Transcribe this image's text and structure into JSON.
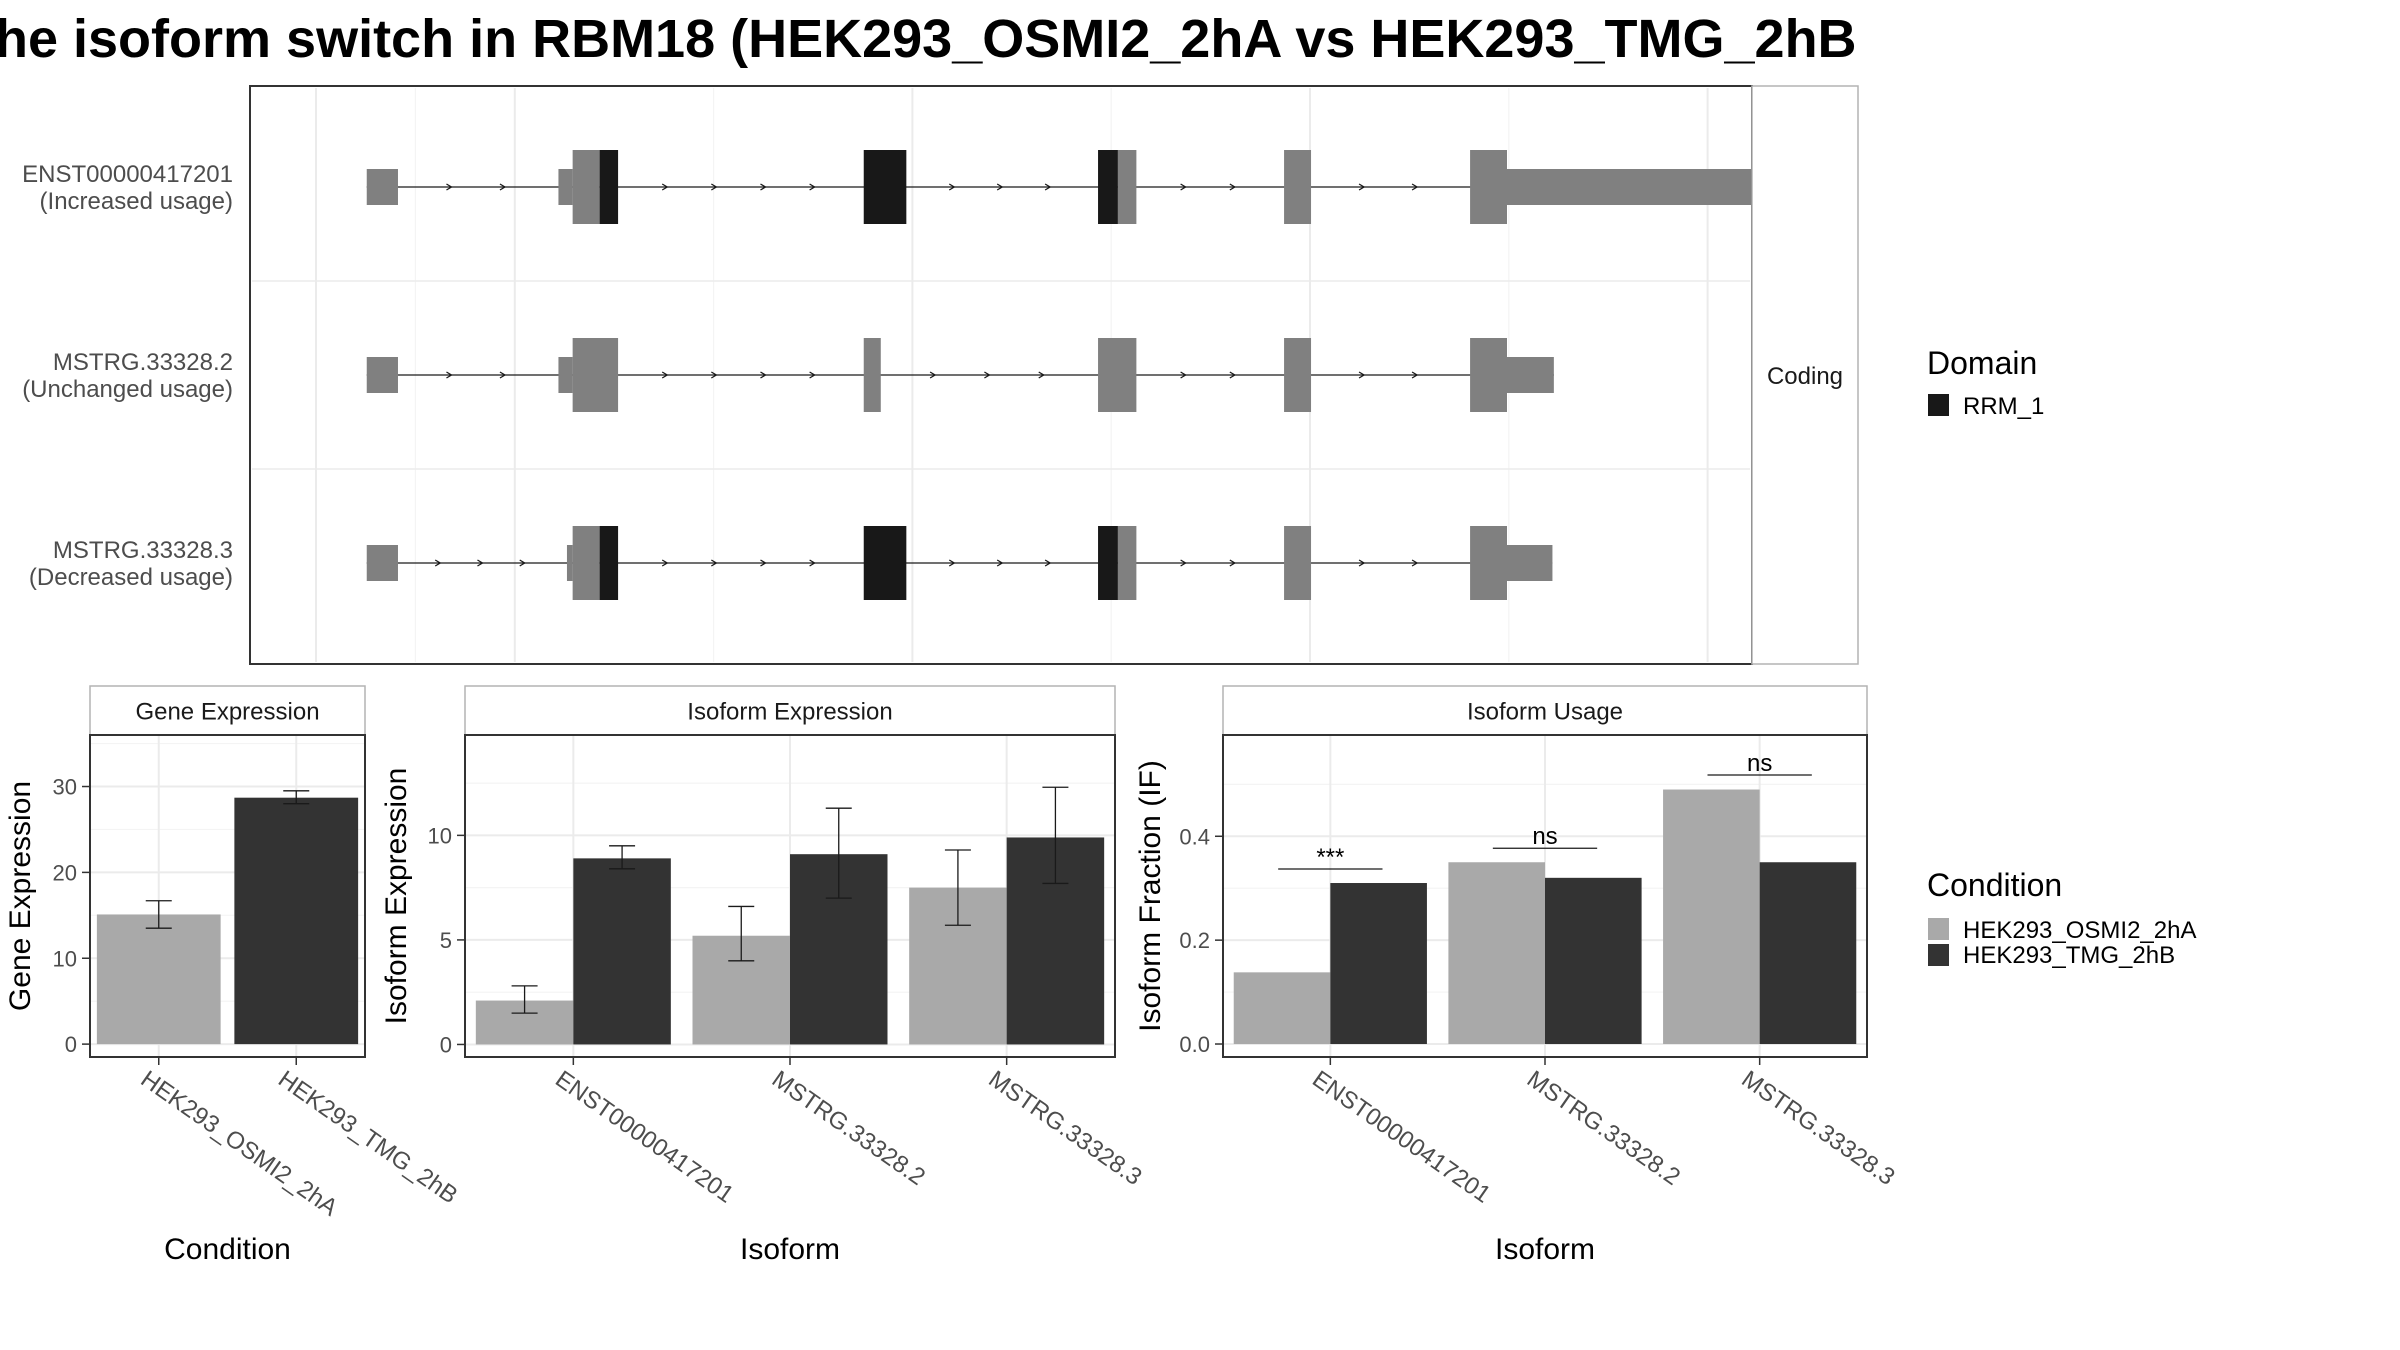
{
  "title": "he isoform switch in RBM18 (HEK293_OSMI2_2hA vs HEK293_TMG_2hB",
  "colors": {
    "condA": "#a9a9a9",
    "condB": "#333333",
    "utr": "#808080",
    "domain": "#181818",
    "grid": "#ebebeb",
    "border": "#333333",
    "stripBorder": "#b3b3b3"
  },
  "chart_data": [
    {
      "type": "gene-structure",
      "facet_label": "Coding",
      "x_range": [
        0,
        1
      ],
      "transcripts": [
        {
          "id": "ENST00000417201",
          "status": "(Increased usage)",
          "exons": [
            {
              "start": 0.047,
              "end": 0.069,
              "kind": "utr"
            },
            {
              "start": 0.182,
              "end": 0.192,
              "kind": "utr-mid"
            },
            {
              "start": 0.192,
              "end": 0.211,
              "kind": "cds"
            },
            {
              "start": 0.211,
              "end": 0.224,
              "kind": "domain"
            },
            {
              "start": 0.397,
              "end": 0.427,
              "kind": "domain"
            },
            {
              "start": 0.562,
              "end": 0.576,
              "kind": "domain"
            },
            {
              "start": 0.576,
              "end": 0.589,
              "kind": "cds"
            },
            {
              "start": 0.693,
              "end": 0.712,
              "kind": "cds"
            },
            {
              "start": 0.824,
              "end": 0.85,
              "kind": "cds"
            },
            {
              "start": 0.85,
              "end": 1.035,
              "kind": "utr-mid"
            }
          ]
        },
        {
          "id": "MSTRG.33328.2",
          "status": "(Unchanged usage)",
          "exons": [
            {
              "start": 0.047,
              "end": 0.069,
              "kind": "utr"
            },
            {
              "start": 0.182,
              "end": 0.192,
              "kind": "utr-mid"
            },
            {
              "start": 0.192,
              "end": 0.224,
              "kind": "cds"
            },
            {
              "start": 0.397,
              "end": 0.409,
              "kind": "cds"
            },
            {
              "start": 0.562,
              "end": 0.589,
              "kind": "cds"
            },
            {
              "start": 0.693,
              "end": 0.712,
              "kind": "cds"
            },
            {
              "start": 0.824,
              "end": 0.85,
              "kind": "cds"
            },
            {
              "start": 0.85,
              "end": 0.883,
              "kind": "utr-mid"
            }
          ]
        },
        {
          "id": "MSTRG.33328.3",
          "status": "(Decreased usage)",
          "exons": [
            {
              "start": 0.047,
              "end": 0.069,
              "kind": "utr"
            },
            {
              "start": 0.188,
              "end": 0.192,
              "kind": "utr-mid"
            },
            {
              "start": 0.192,
              "end": 0.211,
              "kind": "cds"
            },
            {
              "start": 0.211,
              "end": 0.224,
              "kind": "domain"
            },
            {
              "start": 0.397,
              "end": 0.427,
              "kind": "domain"
            },
            {
              "start": 0.562,
              "end": 0.576,
              "kind": "domain"
            },
            {
              "start": 0.576,
              "end": 0.589,
              "kind": "cds"
            },
            {
              "start": 0.693,
              "end": 0.712,
              "kind": "cds"
            },
            {
              "start": 0.824,
              "end": 0.85,
              "kind": "cds"
            },
            {
              "start": 0.85,
              "end": 0.882,
              "kind": "utr-mid"
            }
          ]
        }
      ],
      "legend": {
        "title": "Domain",
        "entries": [
          "RRM_1"
        ]
      }
    },
    {
      "type": "bar",
      "facet_label": "Gene Expression",
      "xlabel": "Condition",
      "ylabel": "Gene Expression",
      "ylim": [
        -1.5,
        36
      ],
      "yticks": [
        0,
        10,
        20,
        30
      ],
      "categories": [
        "HEK293_OSMI2_2hA",
        "HEK293_TMG_2hB"
      ],
      "values": [
        15.1,
        28.7
      ],
      "err_low": [
        13.5,
        28.0
      ],
      "err_high": [
        16.7,
        29.5
      ]
    },
    {
      "type": "bar",
      "facet_label": "Isoform Expression",
      "xlabel": "Isoform",
      "ylabel": "Isoform Expression",
      "ylim": [
        -0.6,
        14.8
      ],
      "yticks": [
        0,
        5,
        10
      ],
      "categories": [
        "ENST00000417201",
        "MSTRG.33328.2",
        "MSTRG.33328.3"
      ],
      "series": [
        {
          "name": "HEK293_OSMI2_2hA",
          "values": [
            2.1,
            5.2,
            7.5
          ],
          "err_low": [
            1.5,
            4.0,
            5.7
          ],
          "err_high": [
            2.8,
            6.6,
            9.3
          ]
        },
        {
          "name": "HEK293_TMG_2hB",
          "values": [
            8.9,
            9.1,
            9.9
          ],
          "err_low": [
            8.4,
            7.0,
            7.7
          ],
          "err_high": [
            9.5,
            11.3,
            12.3
          ]
        }
      ]
    },
    {
      "type": "bar",
      "facet_label": "Isoform Usage",
      "xlabel": "Isoform",
      "ylabel": "Isoform Fraction (IF)",
      "ylim": [
        -0.025,
        0.595
      ],
      "yticks": [
        "0.0",
        "0.2",
        "0.4"
      ],
      "categories": [
        "ENST00000417201",
        "MSTRG.33328.2",
        "MSTRG.33328.3"
      ],
      "series": [
        {
          "name": "HEK293_OSMI2_2hA",
          "values": [
            0.138,
            0.35,
            0.49
          ]
        },
        {
          "name": "HEK293_TMG_2hB",
          "values": [
            0.31,
            0.32,
            0.35
          ]
        }
      ],
      "significance": [
        {
          "label": "***",
          "y": 0.337
        },
        {
          "label": "ns",
          "y": 0.377
        },
        {
          "label": "ns",
          "y": 0.518
        }
      ]
    }
  ],
  "condition_legend": {
    "title": "Condition",
    "entries": [
      "HEK293_OSMI2_2hA",
      "HEK293_TMG_2hB"
    ]
  }
}
